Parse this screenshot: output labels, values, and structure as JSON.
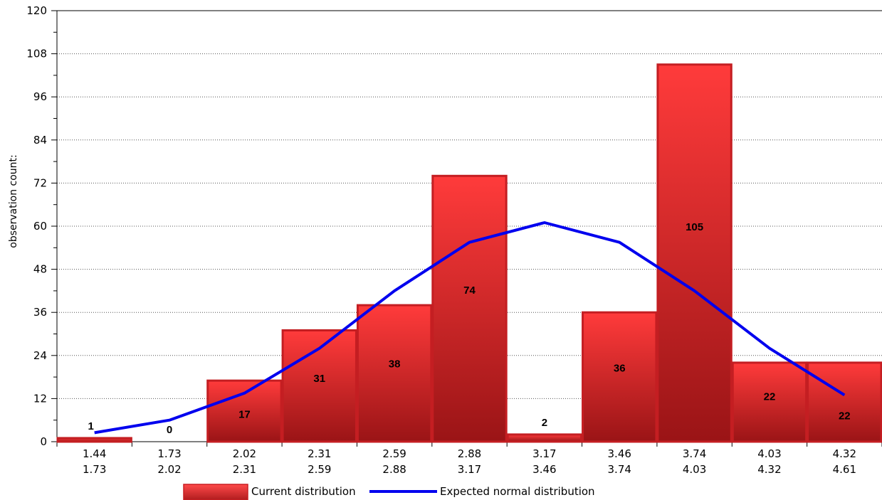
{
  "chart_data": {
    "type": "bar",
    "title": "",
    "ylabel": "observation count:",
    "xlabel": "",
    "ylim": [
      0,
      120
    ],
    "yticks": [
      0,
      12,
      24,
      36,
      48,
      60,
      72,
      84,
      96,
      108,
      120
    ],
    "grid": "horizontal dotted",
    "categories": [
      [
        "1.44",
        "1.73"
      ],
      [
        "1.73",
        "2.02"
      ],
      [
        "2.02",
        "2.31"
      ],
      [
        "2.31",
        "2.59"
      ],
      [
        "2.59",
        "2.88"
      ],
      [
        "2.88",
        "3.17"
      ],
      [
        "3.17",
        "3.46"
      ],
      [
        "3.46",
        "3.74"
      ],
      [
        "3.74",
        "4.03"
      ],
      [
        "4.03",
        "4.32"
      ],
      [
        "4.32",
        "4.61"
      ]
    ],
    "series": [
      {
        "name": "Current distribution",
        "kind": "bar",
        "color": "#e8262a",
        "values": [
          1,
          0,
          17,
          31,
          38,
          74,
          2,
          36,
          105,
          22,
          22
        ],
        "data_labels": [
          "1",
          "0",
          "17",
          "31",
          "38",
          "74",
          "2",
          "36",
          "105",
          "22",
          "22"
        ]
      },
      {
        "name": "Expected normal distribution",
        "kind": "line",
        "color": "#0000ee",
        "values": [
          2.5,
          6,
          13.5,
          26,
          42,
          55.5,
          61,
          55.5,
          42,
          26,
          13
        ]
      }
    ],
    "legend": "bottom-center"
  }
}
